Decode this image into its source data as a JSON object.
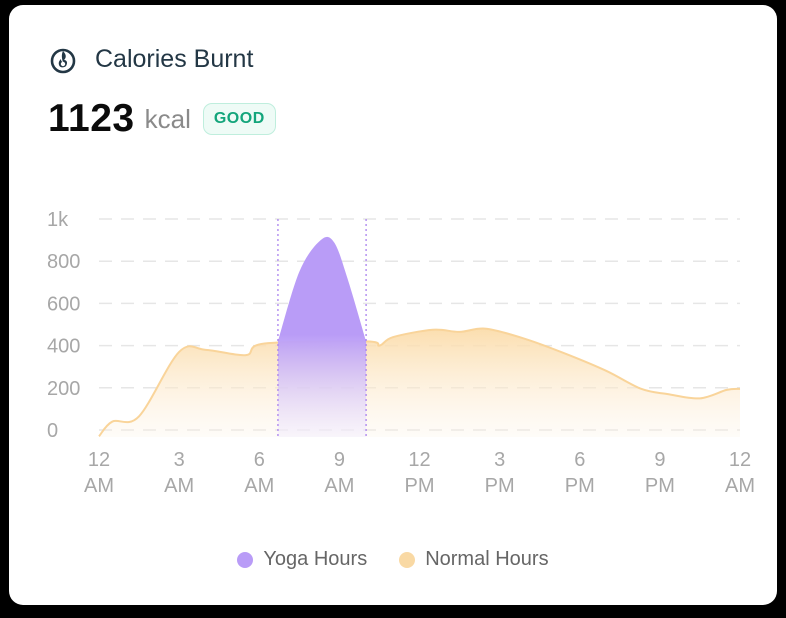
{
  "card": {
    "title": "Calories Burnt",
    "icon": "flame-icon",
    "value": "1123",
    "unit": "kcal",
    "badge": "GOOD"
  },
  "colors": {
    "yoga": "#b99cf7",
    "normal": "#f9d9a4",
    "badge_text": "#13a57b",
    "title": "#233745"
  },
  "legend": [
    {
      "label": "Yoga Hours",
      "color": "#b99cf7"
    },
    {
      "label": "Normal Hours",
      "color": "#f9d9a4"
    }
  ],
  "chart_data": {
    "type": "area",
    "y_ticks": [
      "1k",
      "800",
      "600",
      "400",
      "200",
      "0"
    ],
    "ylim": [
      0,
      1000
    ],
    "x_ticks": [
      [
        "12",
        "AM"
      ],
      [
        "3",
        "AM"
      ],
      [
        "6",
        "AM"
      ],
      [
        "9",
        "AM"
      ],
      [
        "12",
        "PM"
      ],
      [
        "3",
        "PM"
      ],
      [
        "6",
        "PM"
      ],
      [
        "9",
        "PM"
      ],
      [
        "12",
        "AM"
      ]
    ],
    "xlim": [
      0,
      24
    ],
    "grid": true,
    "series": [
      {
        "name": "Normal Hours",
        "points": [
          [
            0,
            -30
          ],
          [
            0.5,
            40
          ],
          [
            1.5,
            65
          ],
          [
            3,
            370
          ],
          [
            4,
            380
          ],
          [
            5.5,
            355
          ],
          [
            6.2,
            410
          ],
          [
            10,
            420
          ],
          [
            10.5,
            400
          ],
          [
            11,
            440
          ],
          [
            12.5,
            475
          ],
          [
            13.5,
            465
          ],
          [
            14.5,
            480
          ],
          [
            16,
            430
          ],
          [
            17.5,
            360
          ],
          [
            19,
            280
          ],
          [
            20.3,
            195
          ],
          [
            21.3,
            170
          ],
          [
            22.5,
            150
          ],
          [
            23.5,
            190
          ],
          [
            24,
            195
          ]
        ]
      },
      {
        "name": "Yoga Hours",
        "points": [
          [
            6.7,
            420
          ],
          [
            7.5,
            750
          ],
          [
            8.3,
            900
          ],
          [
            8.8,
            890
          ],
          [
            9.3,
            720
          ],
          [
            10,
            420
          ]
        ]
      }
    ],
    "highlight_range": [
      6.7,
      10
    ]
  }
}
